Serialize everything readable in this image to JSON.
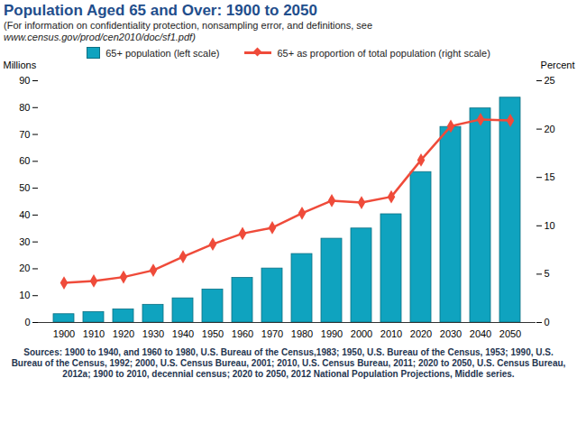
{
  "chart_data": {
    "type": "bar",
    "title": "Population Aged 65 and Over: 1900 to 2050",
    "subtitle": [
      "(For information on confidentiality protection, nonsampling error, and definitions, see",
      "www.census.gov/prod/cen2010/doc/sf1.pdf)"
    ],
    "caption": "Sources: 1900 to 1940, and 1960 to 1980, U.S. Bureau of the Census,1983; 1950, U.S. Bureau of the Census, 1953; 1990, U.S. Bureau of the Census, 1992; 2000, U.S. Census Bureau, 2001; 2010, U.S. Census Bureau, 2011; 2020 to 2050, U.S. Census Bureau, 2012a; 1900 to 2010, decennial census; 2020 to 2050, 2012 National Population Projections, Middle series.",
    "ylabel": "Millions",
    "y2label": "Percent",
    "categories": [
      "1900",
      "1910",
      "1920",
      "1930",
      "1940",
      "1950",
      "1960",
      "1970",
      "1980",
      "1990",
      "2000",
      "2010",
      "2020",
      "2030",
      "2040",
      "2050"
    ],
    "series": [
      {
        "name": "65+ population (left scale)",
        "type": "bar",
        "color": "#0fa3bf",
        "values": [
          3.1,
          3.9,
          4.9,
          6.6,
          9.0,
          12.3,
          16.6,
          20.1,
          25.5,
          31.2,
          35.0,
          40.3,
          56.0,
          72.8,
          79.7,
          83.7
        ]
      },
      {
        "name": "65+ as proportion of total population (right scale)",
        "type": "line",
        "axis": "y2",
        "color": "#ef4b3a",
        "marker": "diamond",
        "line_style": "solid",
        "values": [
          4.1,
          4.3,
          4.7,
          5.4,
          6.8,
          8.1,
          9.2,
          9.8,
          11.3,
          12.6,
          12.4,
          13.0,
          16.8,
          20.3,
          21.0,
          20.9
        ]
      }
    ],
    "ylim": [
      0,
      90
    ],
    "yticks": [
      0,
      10,
      20,
      30,
      40,
      50,
      60,
      70,
      80,
      90
    ],
    "y2lim": [
      0,
      25
    ],
    "y2ticks": [
      0,
      5,
      10,
      15,
      20,
      25
    ],
    "grid": false,
    "legend": "top"
  }
}
